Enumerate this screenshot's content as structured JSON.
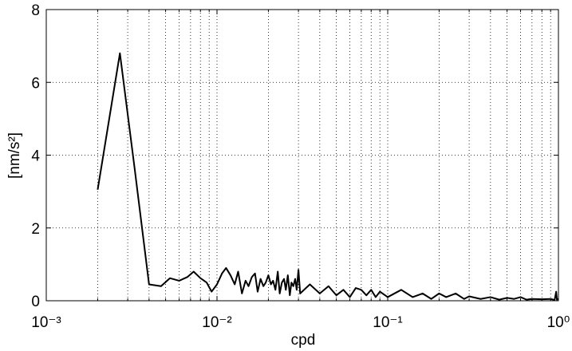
{
  "chart_data": {
    "type": "line",
    "xlabel": "cpd",
    "ylabel": "[nm/s²]",
    "xscale": "log",
    "grid": true,
    "xlim": [
      0.001,
      1
    ],
    "ylim": [
      0,
      8
    ],
    "xticks": [
      {
        "value": 0.001,
        "label": "10⁻³"
      },
      {
        "value": 0.01,
        "label": "10⁻²"
      },
      {
        "value": 0.1,
        "label": "10⁻¹"
      },
      {
        "value": 1,
        "label": "10⁰"
      }
    ],
    "xminorticks": [
      0.002,
      0.003,
      0.004,
      0.005,
      0.006,
      0.007,
      0.008,
      0.009,
      0.02,
      0.03,
      0.04,
      0.05,
      0.06,
      0.07,
      0.08,
      0.09,
      0.2,
      0.3,
      0.4,
      0.5,
      0.6,
      0.7,
      0.8,
      0.9
    ],
    "yticks": [
      0,
      2,
      4,
      6,
      8
    ],
    "series": [
      {
        "color": "#000000",
        "x": [
          0.002,
          0.0027,
          0.0033,
          0.004,
          0.0047,
          0.0053,
          0.006,
          0.0067,
          0.0073,
          0.008,
          0.0087,
          0.0093,
          0.01,
          0.0107,
          0.0113,
          0.012,
          0.0127,
          0.0133,
          0.014,
          0.0147,
          0.0153,
          0.016,
          0.0167,
          0.0173,
          0.018,
          0.0187,
          0.0193,
          0.02,
          0.0207,
          0.0213,
          0.022,
          0.0227,
          0.0233,
          0.024,
          0.0247,
          0.0253,
          0.026,
          0.0267,
          0.0273,
          0.028,
          0.0287,
          0.0293,
          0.03,
          0.0307,
          0.035,
          0.04,
          0.045,
          0.05,
          0.055,
          0.06,
          0.065,
          0.07,
          0.075,
          0.08,
          0.085,
          0.09,
          0.1,
          0.12,
          0.14,
          0.16,
          0.18,
          0.2,
          0.22,
          0.25,
          0.28,
          0.3,
          0.35,
          0.4,
          0.45,
          0.5,
          0.55,
          0.6,
          0.65,
          0.7,
          0.8,
          0.9,
          0.95,
          0.97,
          0.98,
          1.0
        ],
        "values": [
          3.05,
          6.8,
          3.6,
          0.45,
          0.4,
          0.62,
          0.55,
          0.65,
          0.8,
          0.62,
          0.5,
          0.25,
          0.45,
          0.75,
          0.9,
          0.7,
          0.45,
          0.8,
          0.2,
          0.55,
          0.4,
          0.65,
          0.75,
          0.25,
          0.6,
          0.4,
          0.5,
          0.7,
          0.45,
          0.55,
          0.3,
          0.8,
          0.2,
          0.5,
          0.6,
          0.3,
          0.7,
          0.15,
          0.5,
          0.4,
          0.6,
          0.3,
          0.85,
          0.2,
          0.45,
          0.2,
          0.4,
          0.15,
          0.3,
          0.1,
          0.35,
          0.3,
          0.15,
          0.3,
          0.1,
          0.25,
          0.1,
          0.3,
          0.1,
          0.2,
          0.05,
          0.2,
          0.1,
          0.2,
          0.05,
          0.12,
          0.05,
          0.1,
          0.03,
          0.08,
          0.05,
          0.1,
          0.03,
          0.05,
          0.04,
          0.05,
          0.02,
          0.25,
          0.03,
          0.05
        ]
      }
    ]
  }
}
